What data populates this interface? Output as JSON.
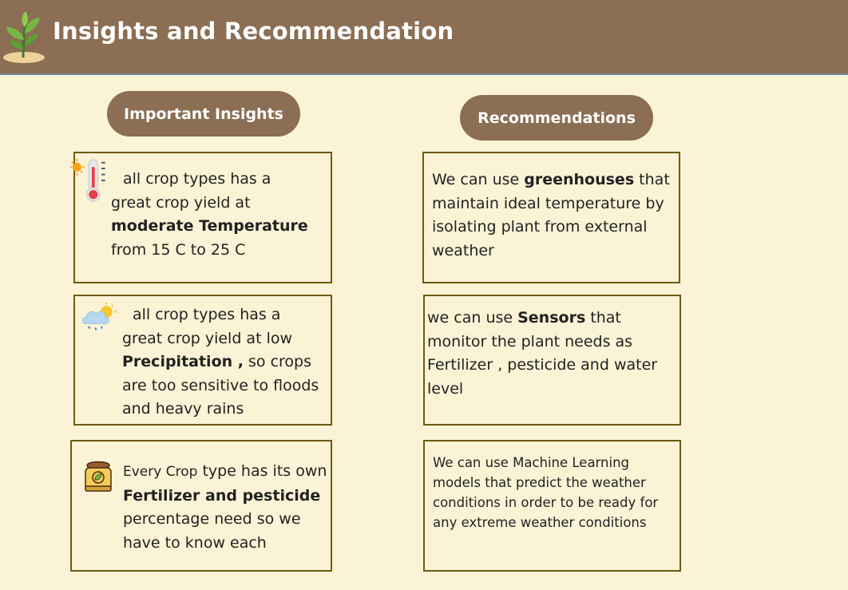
{
  "header": {
    "title": "Insights and Recommendation",
    "logo_icon": "plant-sprout-icon"
  },
  "sections": {
    "insights_label": "Important Insights",
    "recommendations_label": "Recommendations"
  },
  "insights": [
    {
      "icon": "thermometer-sun-icon",
      "line1": "all crop types  has a",
      "line2": "great crop yield at",
      "bold": "moderate Temperature",
      "line4": "from 15 C to 25 C"
    },
    {
      "icon": "cloud-rain-sun-icon",
      "line1": "all crop types  has a",
      "line2": "great crop yield at low",
      "bold": "Precipitation ,",
      "line3_rest": " so crops",
      "line4": "are too sensitive to floods",
      "line5": "and heavy rains"
    },
    {
      "icon": "fertilizer-bag-icon",
      "line1_pre": "Every Crop",
      "line1_post": " type has its own",
      "bold": "Fertilizer and pesticide",
      "line3": "percentage need so we",
      "line4": "have to know each"
    }
  ],
  "recommendations": [
    {
      "line1_pre": "We can use ",
      "bold": "greenhouses",
      "line1_post": " that",
      "line2": "maintain ideal temperature by",
      "line3": "isolating plant from external",
      "line4": "weather"
    },
    {
      "line1_pre": "we can use ",
      "bold": "Sensors",
      "line1_post": " that",
      "line2": "monitor the plant needs as",
      "line3": "Fertilizer , pesticide and  water",
      "line4": "level"
    },
    {
      "line1": "We can use Machine Learning",
      "line2": "models that predict the weather",
      "line3": "conditions in order to be ready for",
      "line4": "any extreme weather conditions"
    }
  ]
}
